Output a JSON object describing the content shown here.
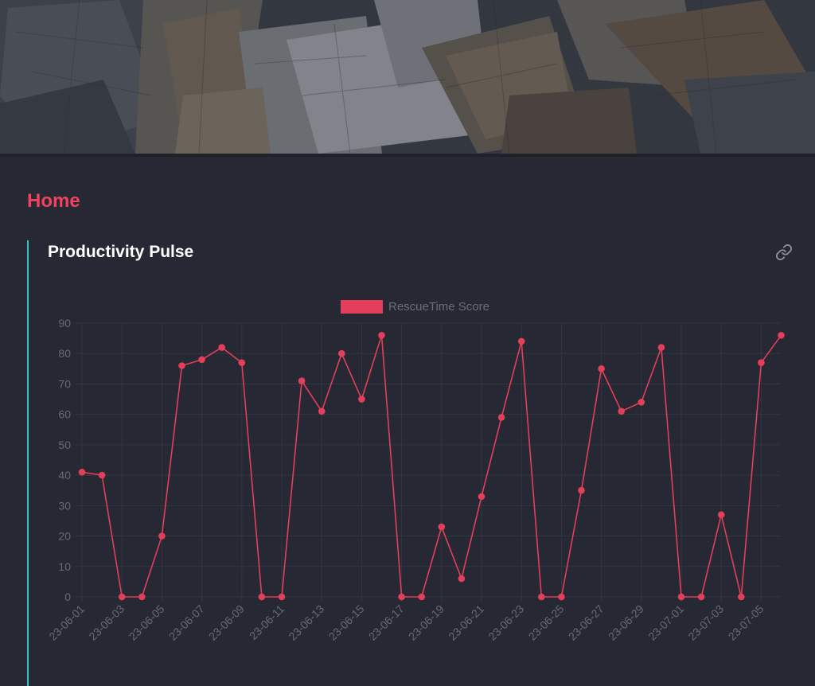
{
  "page": {
    "title": "Home"
  },
  "card": {
    "title": "Productivity Pulse",
    "link_icon": "link-icon"
  },
  "colors": {
    "accent": "#f0435d",
    "series": "#e33e5a",
    "card_bar": "#3cbfd1",
    "background": "#262833"
  },
  "chart_data": {
    "type": "line",
    "title": "",
    "legend": {
      "label": "RescueTime Score",
      "position": "top-center"
    },
    "x": [
      "23-06-01",
      "23-06-02",
      "23-06-03",
      "23-06-04",
      "23-06-05",
      "23-06-06",
      "23-06-07",
      "23-06-08",
      "23-06-09",
      "23-06-10",
      "23-06-11",
      "23-06-12",
      "23-06-13",
      "23-06-14",
      "23-06-15",
      "23-06-16",
      "23-06-17",
      "23-06-18",
      "23-06-19",
      "23-06-20",
      "23-06-21",
      "23-06-22",
      "23-06-23",
      "23-06-24",
      "23-06-25",
      "23-06-26",
      "23-06-27",
      "23-06-28",
      "23-06-29",
      "23-06-30",
      "23-07-01",
      "23-07-02",
      "23-07-03",
      "23-07-04",
      "23-07-05",
      "23-07-06"
    ],
    "x_tick_labels": [
      "23-06-01",
      "23-06-03",
      "23-06-05",
      "23-06-07",
      "23-06-09",
      "23-06-11",
      "23-06-13",
      "23-06-15",
      "23-06-17",
      "23-06-19",
      "23-06-21",
      "23-06-23",
      "23-06-25",
      "23-06-27",
      "23-06-29",
      "23-07-01",
      "23-07-03",
      "23-07-05"
    ],
    "series": [
      {
        "name": "RescueTime Score",
        "values": [
          41,
          40,
          0,
          0,
          20,
          76,
          78,
          82,
          77,
          0,
          0,
          71,
          61,
          80,
          65,
          86,
          0,
          0,
          23,
          6,
          33,
          59,
          84,
          0,
          0,
          35,
          75,
          61,
          64,
          82,
          0,
          0,
          27,
          0,
          77,
          86
        ]
      }
    ],
    "ylim": [
      0,
      90
    ],
    "y_ticks": [
      0,
      10,
      20,
      30,
      40,
      50,
      60,
      70,
      80,
      90
    ],
    "grid": true,
    "xlabel": "",
    "ylabel": ""
  }
}
